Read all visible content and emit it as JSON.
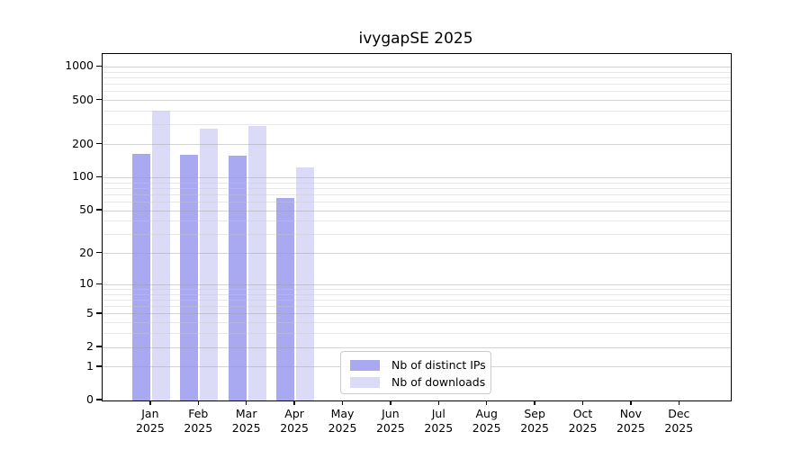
{
  "title": "ivygapSE 2025",
  "chart_data": {
    "type": "bar",
    "title": "ivygapSE 2025",
    "y_scale": "log1p",
    "ylim": [
      0,
      1310
    ],
    "yticks": [
      0,
      1,
      2,
      5,
      10,
      20,
      50,
      100,
      200,
      500,
      1000
    ],
    "yticks_minor": [
      3,
      4,
      6,
      7,
      8,
      9,
      30,
      40,
      60,
      70,
      80,
      90,
      300,
      400,
      600,
      700,
      800,
      900
    ],
    "categories": [
      "Jan",
      "Feb",
      "Mar",
      "Apr",
      "May",
      "Jun",
      "Jul",
      "Aug",
      "Sep",
      "Oct",
      "Nov",
      "Dec"
    ],
    "year": "2025",
    "series": [
      {
        "name": "Nb of distinct IPs",
        "color": "#a9a9f2",
        "values": [
          165,
          160,
          158,
          65,
          null,
          null,
          null,
          null,
          null,
          null,
          null,
          null
        ]
      },
      {
        "name": "Nb of downloads",
        "color": "#dbdbf8",
        "values": [
          405,
          280,
          295,
          123,
          null,
          null,
          null,
          null,
          null,
          null,
          null,
          null
        ]
      }
    ],
    "grid": "horizontal-log1p",
    "legend_position": "bottom-center-inside"
  },
  "colors": {
    "bar_distinct_ips": "#a9a9f2",
    "bar_downloads": "#dbdbf8",
    "major_grid": "#c9c9c9",
    "minor_grid": "#e7e7e7",
    "axis": "#000000",
    "legend_border": "#cccccc",
    "background": "#ffffff"
  }
}
